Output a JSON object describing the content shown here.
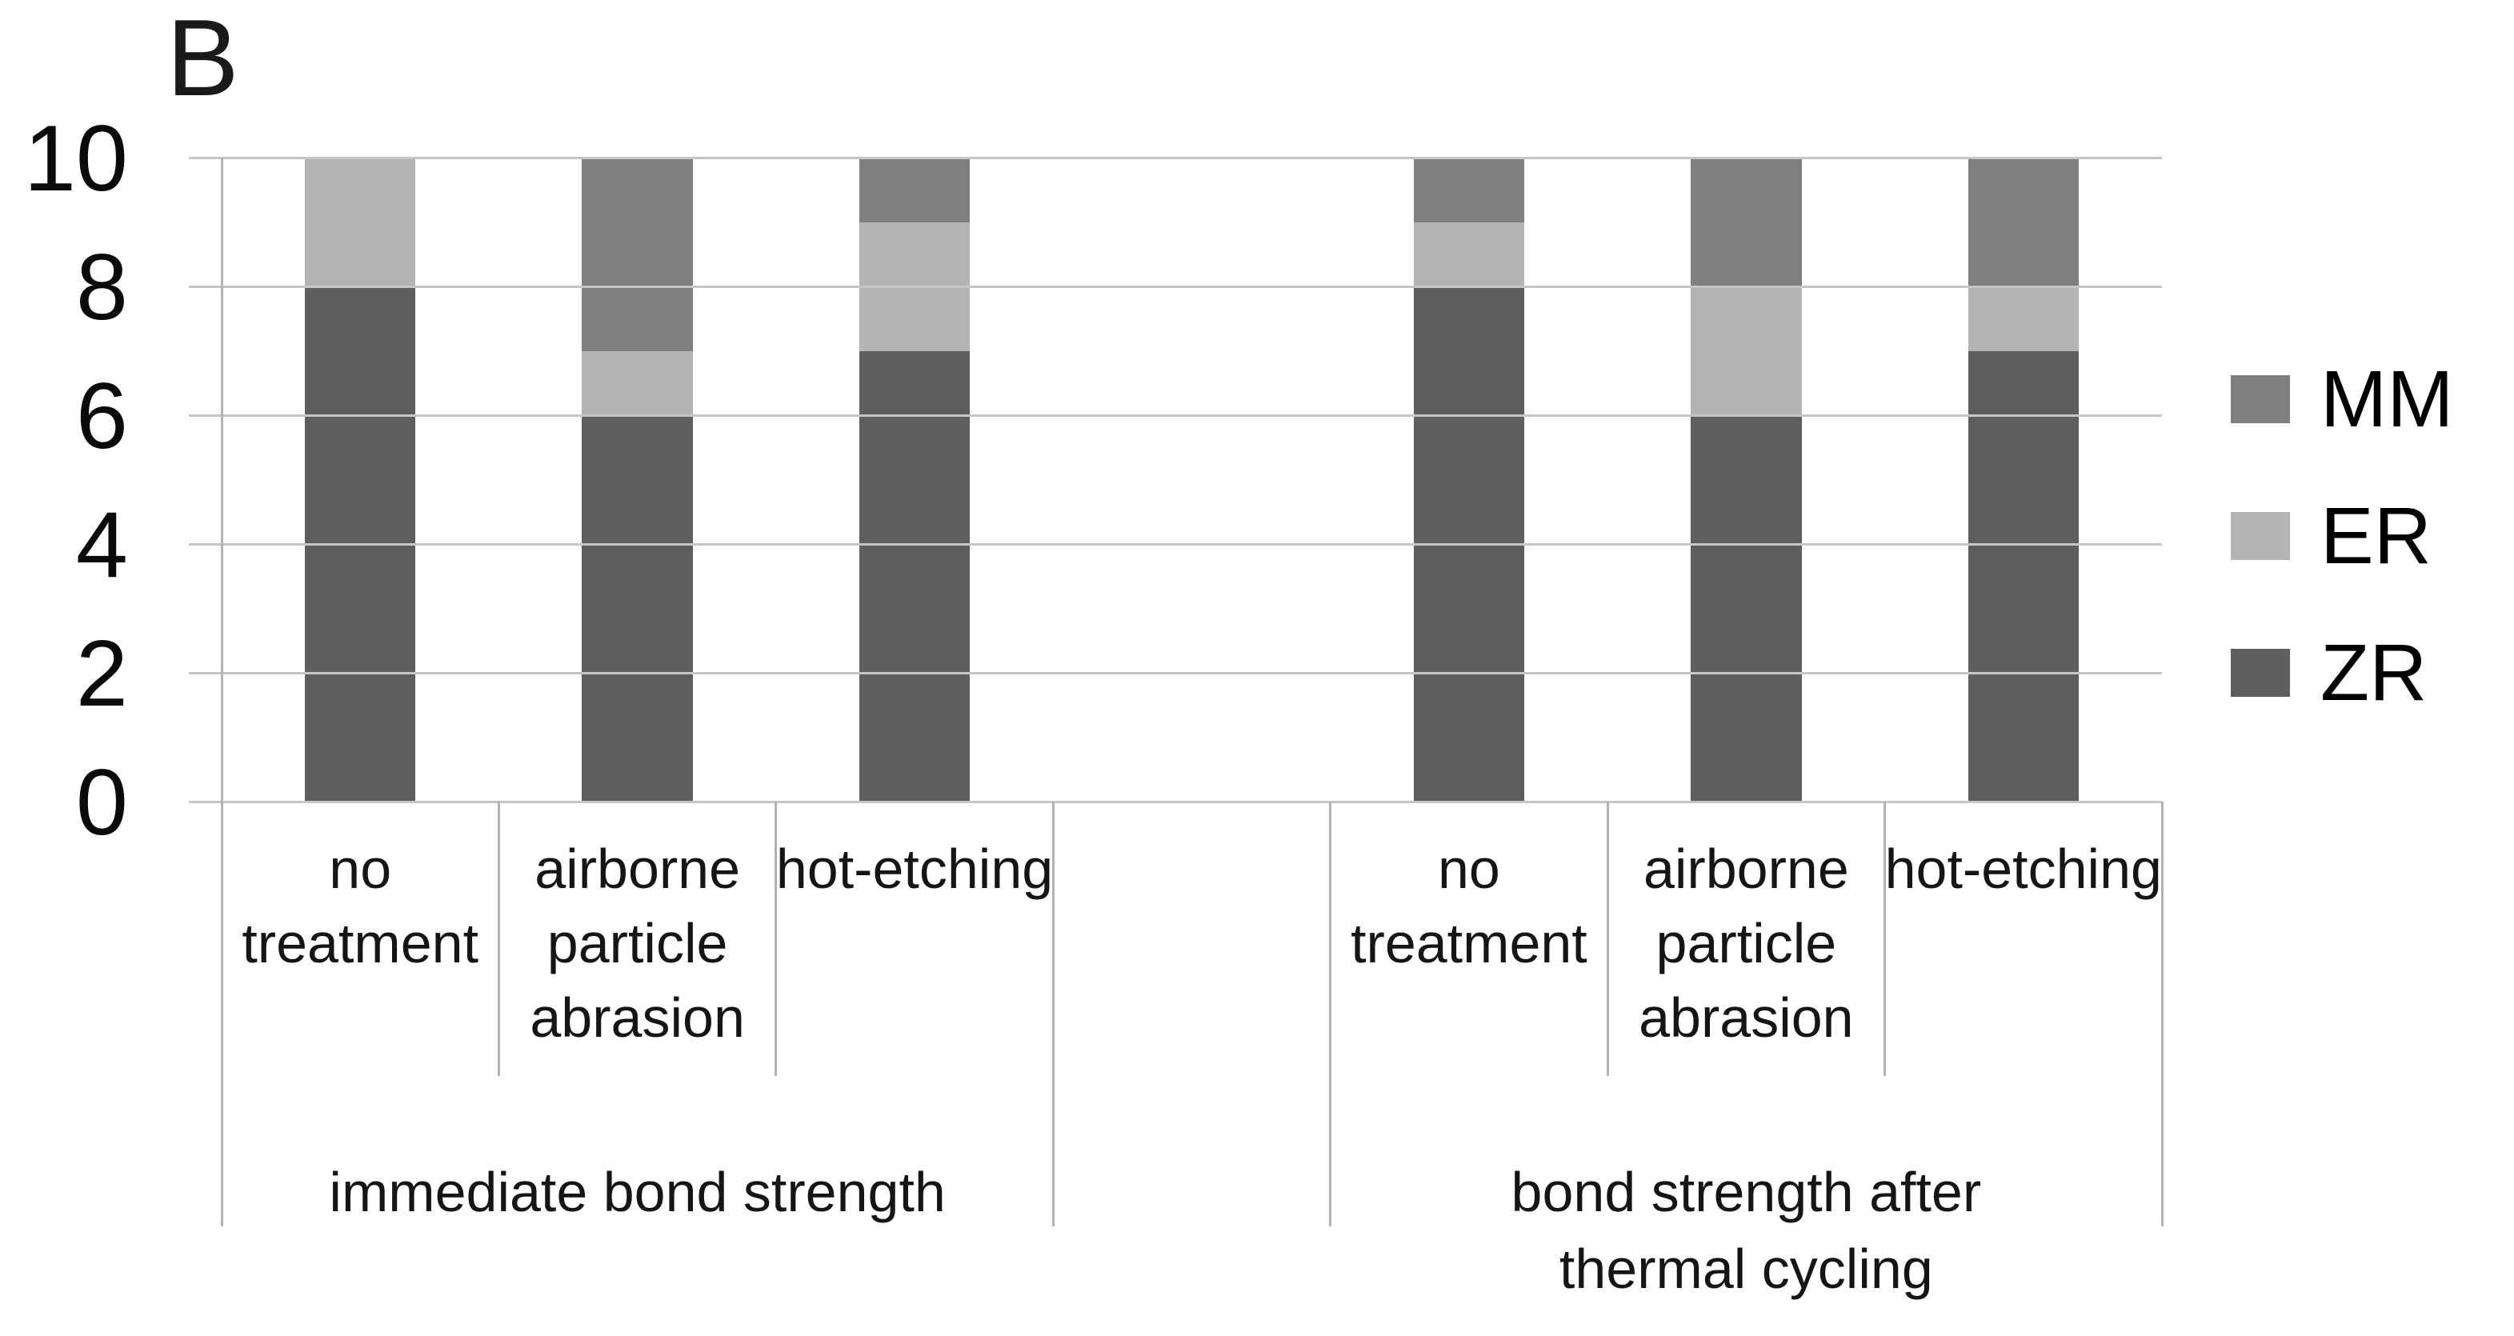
{
  "panel": {
    "label": "B"
  },
  "colors": {
    "zr": "#5e5e5e",
    "er": "#b4b4b4",
    "mm": "#7f7f7f",
    "gridline": "#c6c6c6",
    "axis_line": "#b2b2b2",
    "label_text": "#151515",
    "legend_text": "#000000"
  },
  "legend": {
    "items": [
      "MM",
      "ER",
      "ZR"
    ]
  },
  "y_axis": {
    "tick_labels": [
      "10",
      "8",
      "6",
      "4",
      "2",
      "0"
    ]
  },
  "x_axis": {
    "category_labels": [
      "no treatment",
      "airborne particle abrasion",
      "hot-etching",
      "",
      "no treatment",
      "airborne particle abrasion",
      "hot-etching"
    ],
    "group_labels": [
      "immediate bond strength",
      "bond strength after thermal cycling"
    ]
  },
  "chart_data": {
    "type": "bar",
    "stacked": true,
    "panel_label": "B",
    "categories": [
      "no treatment",
      "airborne particle abrasion",
      "hot-etching",
      "",
      "no treatment",
      "airborne particle abrasion",
      "hot-etching"
    ],
    "groups": [
      {
        "label": "immediate bond strength",
        "span": [
          0,
          3
        ]
      },
      {
        "label": "",
        "span": [
          3,
          4
        ]
      },
      {
        "label": "bond strength after thermal cycling",
        "span": [
          4,
          7
        ]
      }
    ],
    "series": [
      {
        "name": "ZR",
        "color": "#5e5e5e",
        "values": [
          8,
          6,
          7,
          null,
          8,
          6,
          7
        ]
      },
      {
        "name": "ER",
        "color": "#b4b4b4",
        "values": [
          2,
          1,
          2,
          null,
          1,
          2,
          1
        ]
      },
      {
        "name": "MM",
        "color": "#7f7f7f",
        "values": [
          0,
          3,
          1,
          null,
          1,
          2,
          2
        ]
      }
    ],
    "legend_order": [
      "MM",
      "ER",
      "ZR"
    ],
    "ylim": [
      0,
      10
    ],
    "ytick_step": 2,
    "y_tick_labels": [
      "10",
      "8",
      "6",
      "4",
      "2",
      "0"
    ],
    "grid": true,
    "legend_position": "right",
    "bar_fraction_of_slot": 0.4
  }
}
